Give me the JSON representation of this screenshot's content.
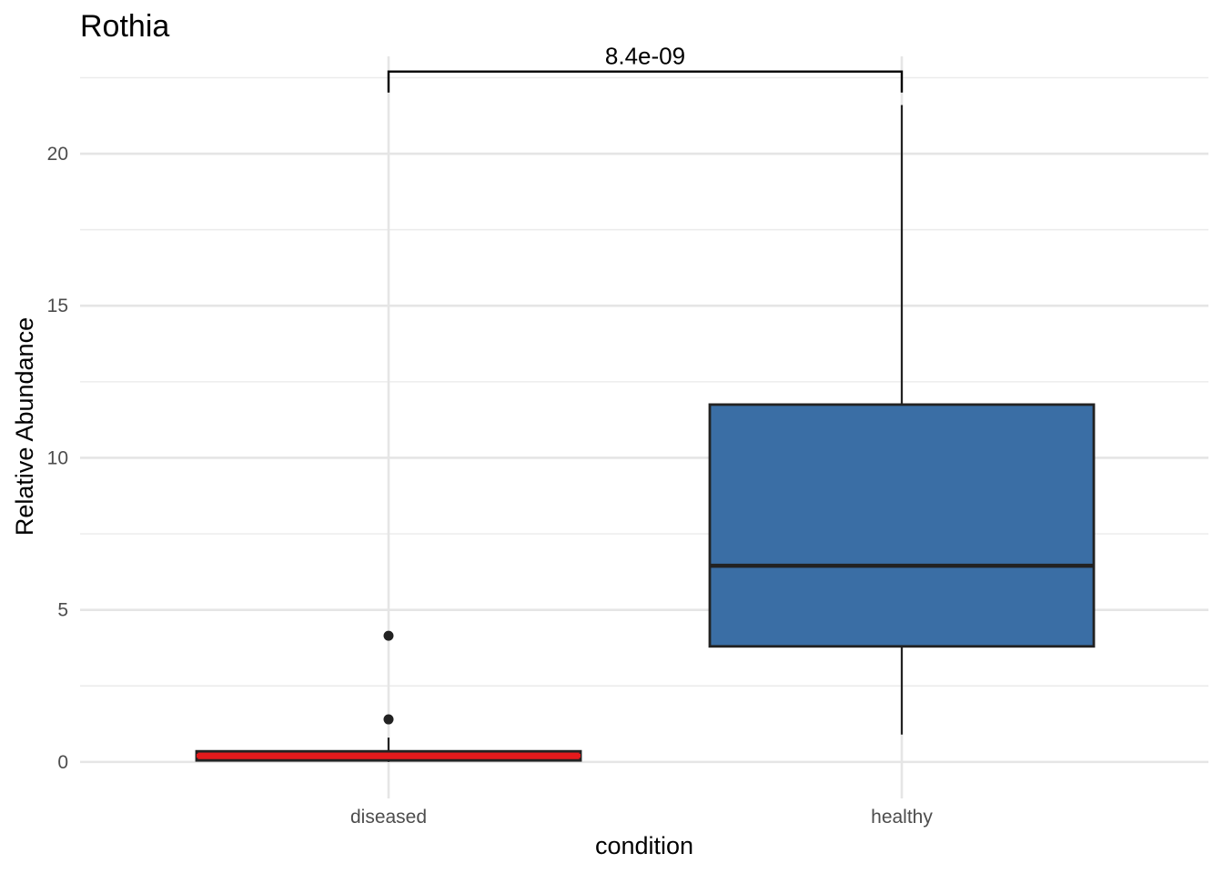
{
  "chart_data": {
    "type": "boxplot",
    "title": "Rothia",
    "xlabel": "condition",
    "ylabel": "Relative Abundance",
    "categories": [
      "diseased",
      "healthy"
    ],
    "ylim": [
      -1.2,
      23.2
    ],
    "yticks": [
      0,
      5,
      10,
      15,
      20
    ],
    "grid": true,
    "legend": "none",
    "boxes": [
      {
        "category": "diseased",
        "whisker_low": 0.0,
        "q1": 0.05,
        "median": 0.2,
        "q3": 0.35,
        "whisker_high": 0.8,
        "outliers": [
          1.4,
          4.15
        ],
        "fill": "#E41A1C",
        "median_color": "#E41A1C"
      },
      {
        "category": "healthy",
        "whisker_low": 0.9,
        "q1": 3.8,
        "median": 6.45,
        "q3": 11.75,
        "whisker_high": 21.6,
        "outliers": [],
        "fill": "#3A6EA5",
        "median_color": "#222222"
      }
    ],
    "comparison": {
      "groups": [
        "diseased",
        "healthy"
      ],
      "label": "8.4e-09",
      "y": 22.7
    }
  }
}
